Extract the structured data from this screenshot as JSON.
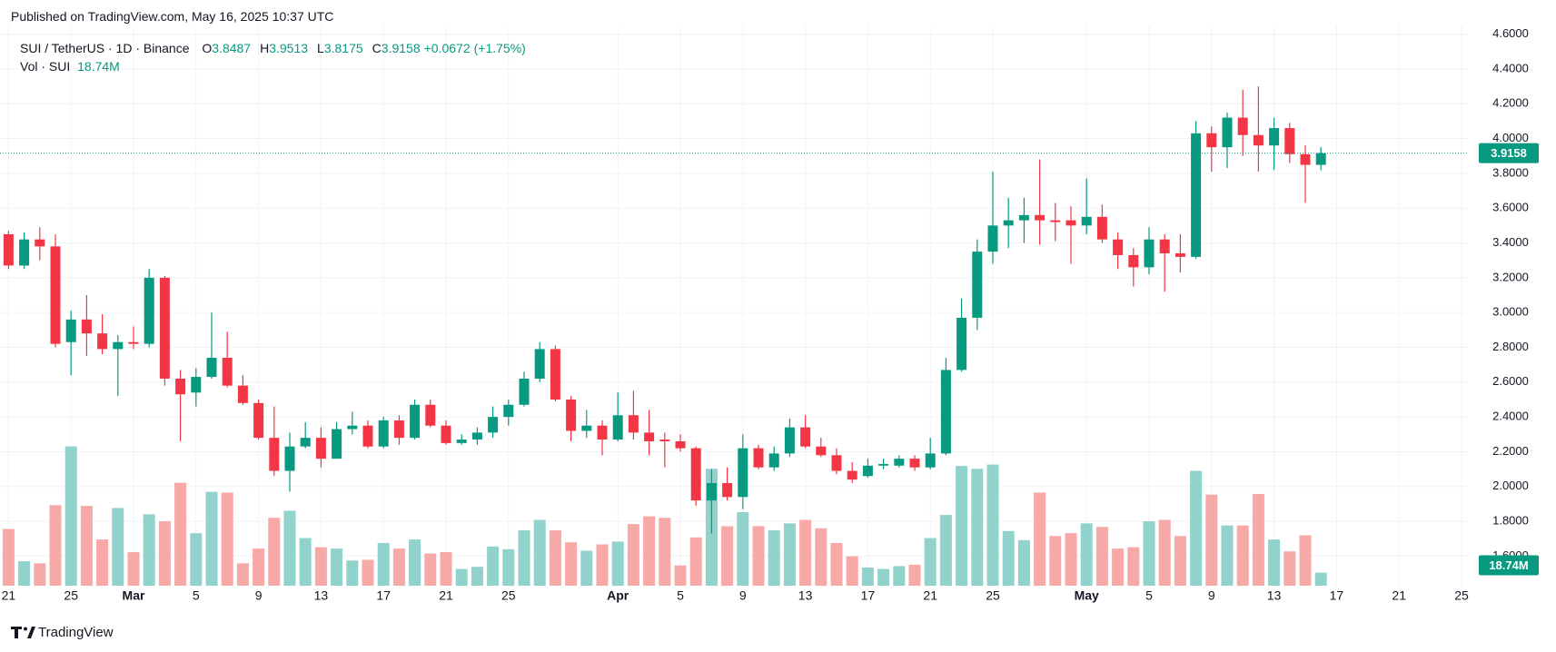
{
  "chart_data": {
    "type": "candlestick",
    "title": "Published on TradingView.com, May 16, 2025 10:37 UTC",
    "symbol": "SUI / TetherUS · 1D · Binance",
    "ohlc_letters": [
      "O",
      "H",
      "L",
      "C"
    ],
    "change_label": "+0.0672",
    "change_pct_label": "(+1.75%)",
    "categories": [
      "21",
      null,
      null,
      null,
      "25",
      null,
      null,
      null,
      "Mar",
      null,
      null,
      null,
      "5",
      null,
      null,
      null,
      "9",
      null,
      null,
      null,
      "13",
      null,
      null,
      null,
      "17",
      null,
      null,
      null,
      "21",
      null,
      null,
      null,
      "25",
      null,
      null,
      null,
      null,
      null,
      null,
      "Apr",
      null,
      null,
      null,
      "5",
      null,
      null,
      null,
      "9",
      null,
      null,
      null,
      "13",
      null,
      null,
      null,
      "17",
      null,
      null,
      null,
      "21",
      null,
      null,
      null,
      "25",
      null,
      null,
      null,
      null,
      null,
      "May",
      null,
      null,
      null,
      "5",
      null,
      null,
      null,
      "9",
      null,
      null,
      null,
      "13",
      null,
      null,
      null,
      "17",
      null,
      null,
      null,
      "21",
      null,
      null,
      null,
      "25"
    ],
    "open": [
      3.45,
      3.27,
      3.42,
      3.38,
      2.83,
      2.96,
      2.88,
      2.79,
      2.83,
      2.82,
      3.2,
      2.62,
      2.54,
      2.63,
      2.74,
      2.58,
      2.48,
      2.28,
      2.09,
      2.23,
      2.28,
      2.16,
      2.33,
      2.35,
      2.23,
      2.38,
      2.28,
      2.47,
      2.35,
      2.25,
      2.27,
      2.31,
      2.4,
      2.47,
      2.62,
      2.79,
      2.5,
      2.32,
      2.35,
      2.27,
      2.41,
      2.31,
      2.27,
      2.26,
      2.22,
      1.92,
      2.02,
      1.94,
      2.22,
      2.11,
      2.19,
      2.34,
      2.23,
      2.18,
      2.09,
      2.06,
      2.12,
      2.12,
      2.16,
      2.11,
      2.19,
      2.67,
      2.97,
      3.35,
      3.5,
      3.53,
      3.56,
      3.53,
      3.53,
      3.5,
      3.55,
      3.42,
      3.33,
      3.26,
      3.42,
      3.34,
      3.32,
      4.03,
      3.95,
      4.12,
      4.02,
      3.96,
      4.06,
      3.91,
      3.8487,
      null,
      null,
      null,
      null,
      null,
      null,
      null,
      null,
      null
    ],
    "high": [
      3.47,
      3.46,
      3.49,
      3.45,
      3.01,
      3.1,
      2.99,
      2.87,
      2.92,
      3.25,
      3.21,
      2.67,
      2.68,
      3.0,
      2.89,
      2.64,
      2.5,
      2.46,
      2.31,
      2.37,
      2.34,
      2.37,
      2.43,
      2.38,
      2.4,
      2.41,
      2.5,
      2.5,
      2.38,
      2.3,
      2.34,
      2.46,
      2.5,
      2.66,
      2.83,
      2.81,
      2.52,
      2.44,
      2.38,
      2.54,
      2.55,
      2.44,
      2.31,
      2.3,
      2.23,
      2.1,
      2.11,
      2.3,
      2.24,
      2.23,
      2.39,
      2.41,
      2.28,
      2.22,
      2.14,
      2.16,
      2.16,
      2.18,
      2.18,
      2.28,
      2.74,
      3.08,
      3.42,
      3.81,
      3.66,
      3.66,
      3.88,
      3.63,
      3.61,
      3.77,
      3.62,
      3.46,
      3.37,
      3.49,
      3.45,
      3.45,
      4.1,
      4.07,
      4.15,
      4.28,
      4.3,
      4.12,
      4.09,
      3.96,
      3.9513,
      null,
      null,
      null,
      null,
      null,
      null,
      null,
      null,
      null
    ],
    "low": [
      3.25,
      3.25,
      3.3,
      2.8,
      2.64,
      2.75,
      2.76,
      2.52,
      2.79,
      2.8,
      2.58,
      2.26,
      2.46,
      2.62,
      2.57,
      2.47,
      2.27,
      2.06,
      1.97,
      2.22,
      2.11,
      2.16,
      2.3,
      2.22,
      2.22,
      2.24,
      2.27,
      2.34,
      2.24,
      2.24,
      2.24,
      2.28,
      2.35,
      2.46,
      2.6,
      2.49,
      2.26,
      2.28,
      2.18,
      2.26,
      2.27,
      2.18,
      2.11,
      2.2,
      1.89,
      1.73,
      1.92,
      1.87,
      2.1,
      2.09,
      2.17,
      2.22,
      2.17,
      2.07,
      2.02,
      2.05,
      2.1,
      2.11,
      2.09,
      2.1,
      2.18,
      2.66,
      2.9,
      3.28,
      3.37,
      3.4,
      3.39,
      3.41,
      3.28,
      3.45,
      3.4,
      3.25,
      3.15,
      3.22,
      3.12,
      3.23,
      3.31,
      3.81,
      3.83,
      3.9,
      3.81,
      3.82,
      3.86,
      3.63,
      3.8175,
      null,
      null,
      null,
      null,
      null,
      null,
      null,
      null,
      null
    ],
    "close": [
      3.27,
      3.42,
      3.38,
      2.82,
      2.96,
      2.88,
      2.79,
      2.83,
      2.82,
      3.2,
      2.62,
      2.53,
      2.63,
      2.74,
      2.58,
      2.48,
      2.28,
      2.09,
      2.23,
      2.28,
      2.16,
      2.33,
      2.35,
      2.23,
      2.38,
      2.28,
      2.47,
      2.35,
      2.25,
      2.27,
      2.31,
      2.4,
      2.47,
      2.62,
      2.79,
      2.5,
      2.32,
      2.35,
      2.27,
      2.41,
      2.31,
      2.26,
      2.26,
      2.22,
      1.92,
      2.02,
      1.94,
      2.22,
      2.11,
      2.19,
      2.34,
      2.23,
      2.18,
      2.09,
      2.04,
      2.12,
      2.13,
      2.16,
      2.11,
      2.19,
      2.67,
      2.97,
      3.35,
      3.5,
      3.53,
      3.56,
      3.53,
      3.52,
      3.5,
      3.55,
      3.42,
      3.33,
      3.26,
      3.42,
      3.34,
      3.32,
      4.03,
      3.95,
      4.12,
      4.02,
      3.96,
      4.06,
      3.91,
      3.8487,
      3.9158,
      null,
      null,
      null,
      null,
      null,
      null,
      null,
      null,
      null
    ],
    "up_color": "#089981",
    "down_color": "#f23645",
    "volume": {
      "name": "Vol · SUI",
      "values": [
        81,
        35,
        32,
        115,
        199,
        114,
        66,
        111,
        48,
        102,
        92,
        147,
        75,
        134,
        133,
        32,
        53,
        97,
        107,
        68,
        55,
        53,
        36,
        37,
        61,
        53,
        66,
        46,
        48,
        24,
        27,
        56,
        52,
        79,
        94,
        79,
        62,
        50,
        59,
        63,
        88,
        99,
        97,
        29,
        69,
        167,
        85,
        105,
        85,
        79,
        89,
        94,
        82,
        61,
        42,
        26,
        24,
        28,
        30,
        68,
        101,
        171,
        167,
        173,
        78,
        65,
        133,
        71,
        75,
        89,
        84,
        53,
        55,
        92,
        94,
        71,
        164,
        130,
        86,
        86,
        131,
        66,
        49,
        72,
        18.74,
        null,
        null,
        null,
        null,
        null,
        null,
        null,
        null,
        null
      ],
      "value_labels": [
        null,
        null,
        null,
        null,
        null,
        null,
        null,
        null,
        null,
        null,
        null,
        null,
        null,
        null,
        null,
        null,
        null,
        null,
        null,
        null,
        null,
        null,
        null,
        null,
        null,
        null,
        null,
        null,
        null,
        null,
        null,
        null,
        null,
        null,
        null,
        null,
        null,
        null,
        null,
        null,
        null,
        null,
        null,
        null,
        null,
        null,
        null,
        null,
        null,
        null,
        null,
        null,
        null,
        null,
        null,
        null,
        null,
        null,
        null,
        null,
        null,
        null,
        null,
        null,
        null,
        null,
        null,
        null,
        null,
        null,
        null,
        null,
        null,
        null,
        null,
        null,
        null,
        null,
        null,
        null,
        null,
        null,
        null,
        null,
        "18.74M",
        null,
        null,
        null,
        null,
        null,
        null,
        null,
        null,
        null
      ],
      "up_color": "#92d2cc",
      "down_color": "#f7a9a7",
      "axis": "y2"
    },
    "ylim": [
      1.43,
      4.65
    ],
    "yticks": [
      {
        "value": 1.6,
        "label": "1.6000"
      },
      {
        "value": 1.8,
        "label": "1.8000"
      },
      {
        "value": 2,
        "label": "2.0000"
      },
      {
        "value": 2.2,
        "label": "2.2000"
      },
      {
        "value": 2.4,
        "label": "2.4000"
      },
      {
        "value": 2.6,
        "label": "2.6000"
      },
      {
        "value": 2.8,
        "label": "2.8000"
      },
      {
        "value": 3,
        "label": "3.0000"
      },
      {
        "value": 3.2,
        "label": "3.2000"
      },
      {
        "value": 3.4,
        "label": "3.4000"
      },
      {
        "value": 3.6,
        "label": "3.6000"
      },
      {
        "value": 3.8,
        "label": "3.8000"
      },
      {
        "value": 4,
        "label": "4.0000"
      },
      {
        "value": 4.2,
        "label": "4.2000"
      },
      {
        "value": 4.4,
        "label": "4.4000"
      },
      {
        "value": 4.6,
        "label": "4.6000"
      }
    ],
    "y2lim": [
      0,
      800
    ],
    "grid": true,
    "last_price_line": true,
    "footer": "TradingView"
  }
}
